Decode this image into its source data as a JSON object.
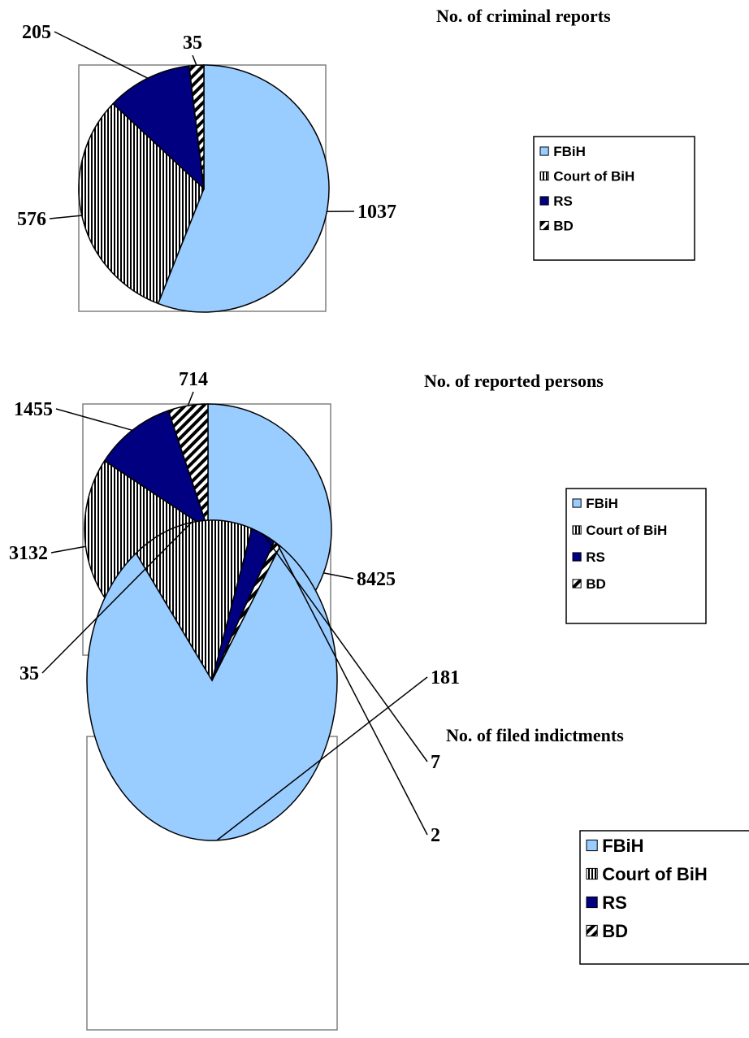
{
  "colors": {
    "fbih": "#99ccff",
    "court": "#ffffff",
    "rs": "#000080",
    "bd": "#ffffff",
    "outline": "#000000",
    "plot_frame": "#808080"
  },
  "legend_labels": [
    "FBiH",
    "Court of BiH",
    "RS",
    "BD"
  ],
  "chart_data": [
    {
      "type": "pie",
      "title": "No. of criminal reports",
      "labels": [
        "FBiH",
        "Court of BiH",
        "RS",
        "BD"
      ],
      "values": [
        1037,
        576,
        205,
        35
      ],
      "data_labels": [
        "1037",
        "576",
        "205",
        "35"
      ],
      "legend_placement": "right"
    },
    {
      "type": "pie",
      "title": "No. of reported persons",
      "labels": [
        "FBiH",
        "Court of BiH",
        "RS",
        "BD"
      ],
      "values": [
        8425,
        3132,
        1455,
        714
      ],
      "data_labels": [
        "8425",
        "3132",
        "1455",
        "714"
      ],
      "legend_placement": "right"
    },
    {
      "type": "pie",
      "title": "No. of filed indictments",
      "labels": [
        "FBiH",
        "Court of BiH",
        "RS",
        "BD"
      ],
      "values": [
        181,
        35,
        7,
        2
      ],
      "data_labels": [
        "181",
        "35",
        "7",
        "2"
      ],
      "legend_placement": "right"
    }
  ]
}
